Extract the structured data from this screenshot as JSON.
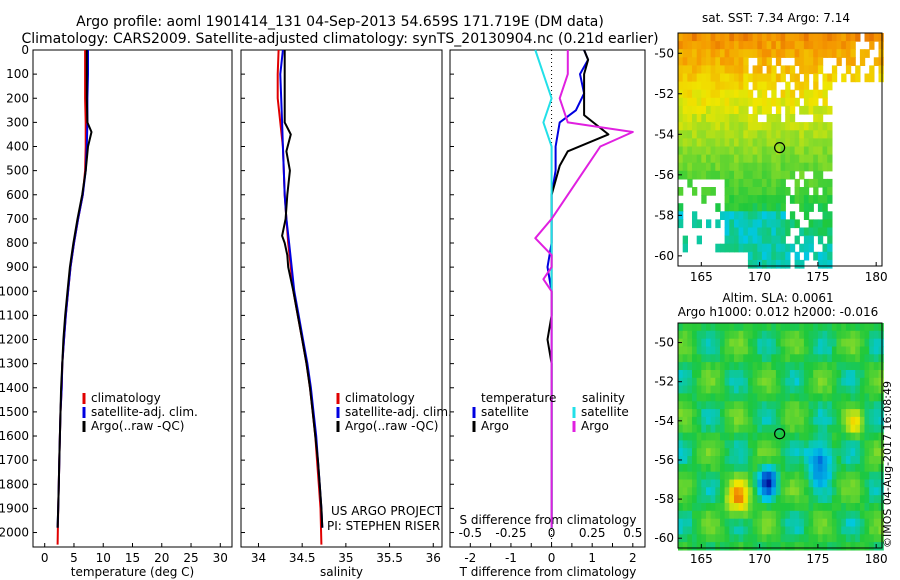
{
  "header": {
    "line1": "Argo profile: aoml 1901414_131 04-Sep-2013 54.659S 171.719E (DM data)",
    "line2": "Climatology: CARS2009. Satellite-adjusted climatology: synTS_20130904.nc (0.21d earlier)"
  },
  "colors": {
    "climatology": "#e00000",
    "satellite": "#0000e0",
    "argo": "#000000",
    "salinity_sat": "#22e0e8",
    "salinity_argo": "#e020e0"
  },
  "credit": "©IMOS 04-Aug-2017 16:08:49",
  "project_note": [
    "US ARGO PROJECT",
    "PI: STEPHEN RISER"
  ],
  "chart_data": [
    {
      "id": "temperature",
      "type": "line",
      "xlabel": "temperature (deg C)",
      "ylabel": "",
      "xlim": [
        -2,
        32
      ],
      "ylim": [
        2060,
        0
      ],
      "xticks": [
        0,
        5,
        10,
        15,
        20,
        25,
        30
      ],
      "yticks": [
        0,
        100,
        200,
        300,
        400,
        500,
        600,
        700,
        800,
        900,
        1000,
        1100,
        1200,
        1300,
        1400,
        1500,
        1600,
        1700,
        1800,
        1900,
        2000
      ],
      "legend": [
        "climatology",
        "satellite-adj. clim.",
        "Argo(..raw -QC)"
      ],
      "series": [
        {
          "name": "climatology",
          "color": "#e00000",
          "points": [
            [
              6.9,
              0
            ],
            [
              6.9,
              100
            ],
            [
              6.9,
              200
            ],
            [
              7.0,
              300
            ],
            [
              7.0,
              400
            ],
            [
              6.9,
              500
            ],
            [
              6.5,
              600
            ],
            [
              5.7,
              700
            ],
            [
              5.0,
              800
            ],
            [
              4.4,
              900
            ],
            [
              4.0,
              1000
            ],
            [
              3.6,
              1100
            ],
            [
              3.3,
              1200
            ],
            [
              3.0,
              1300
            ],
            [
              2.9,
              1400
            ],
            [
              2.7,
              1500
            ],
            [
              2.6,
              1600
            ],
            [
              2.5,
              1700
            ],
            [
              2.4,
              1800
            ],
            [
              2.3,
              1900
            ],
            [
              2.2,
              2050
            ]
          ]
        },
        {
          "name": "satellite-adj. clim.",
          "color": "#0000e0",
          "points": [
            [
              7.4,
              0
            ],
            [
              7.4,
              100
            ],
            [
              7.3,
              200
            ],
            [
              7.3,
              300
            ],
            [
              7.2,
              400
            ],
            [
              7.0,
              500
            ],
            [
              6.5,
              600
            ],
            [
              5.7,
              700
            ],
            [
              5.0,
              800
            ],
            [
              4.4,
              900
            ],
            [
              4.0,
              1000
            ],
            [
              3.6,
              1100
            ],
            [
              3.3,
              1200
            ],
            [
              3.0,
              1300
            ],
            [
              2.9,
              1400
            ],
            [
              2.7,
              1500
            ],
            [
              2.6,
              1600
            ],
            [
              2.5,
              1700
            ],
            [
              2.4,
              1800
            ],
            [
              2.3,
              1900
            ],
            [
              2.2,
              1980
            ]
          ]
        },
        {
          "name": "Argo(..raw -QC)",
          "color": "#000000",
          "points": [
            [
              7.2,
              0
            ],
            [
              7.2,
              100
            ],
            [
              7.2,
              200
            ],
            [
              7.3,
              300
            ],
            [
              8.0,
              340
            ],
            [
              7.4,
              400
            ],
            [
              7.0,
              500
            ],
            [
              6.4,
              600
            ],
            [
              5.6,
              700
            ],
            [
              4.9,
              800
            ],
            [
              4.3,
              900
            ],
            [
              3.9,
              1000
            ],
            [
              3.5,
              1100
            ],
            [
              3.2,
              1200
            ],
            [
              3.0,
              1300
            ],
            [
              2.8,
              1400
            ],
            [
              2.7,
              1500
            ],
            [
              2.6,
              1600
            ],
            [
              2.5,
              1700
            ],
            [
              2.4,
              1800
            ],
            [
              2.3,
              1900
            ],
            [
              2.2,
              1980
            ]
          ]
        }
      ]
    },
    {
      "id": "salinity",
      "type": "line",
      "xlabel": "salinity",
      "ylabel": "",
      "xlim": [
        33.8,
        36.1
      ],
      "ylim": [
        2060,
        0
      ],
      "xticks": [
        34,
        34.5,
        35,
        35.5,
        36
      ],
      "legend": [
        "climatology",
        "satellite-adj. clim.",
        "Argo(..raw -QC)"
      ],
      "series": [
        {
          "name": "climatology",
          "color": "#e00000",
          "points": [
            [
              34.23,
              0
            ],
            [
              34.22,
              100
            ],
            [
              34.22,
              200
            ],
            [
              34.25,
              300
            ],
            [
              34.28,
              400
            ],
            [
              34.29,
              500
            ],
            [
              34.3,
              600
            ],
            [
              34.32,
              700
            ],
            [
              34.34,
              800
            ],
            [
              34.37,
              900
            ],
            [
              34.4,
              1000
            ],
            [
              34.45,
              1100
            ],
            [
              34.5,
              1200
            ],
            [
              34.55,
              1300
            ],
            [
              34.59,
              1400
            ],
            [
              34.62,
              1500
            ],
            [
              34.65,
              1600
            ],
            [
              34.67,
              1700
            ],
            [
              34.69,
              1800
            ],
            [
              34.71,
              1900
            ],
            [
              34.72,
              2050
            ]
          ]
        },
        {
          "name": "satellite-adj. clim.",
          "color": "#0000e0",
          "points": [
            [
              34.28,
              0
            ],
            [
              34.25,
              100
            ],
            [
              34.26,
              200
            ],
            [
              34.27,
              300
            ],
            [
              34.28,
              400
            ],
            [
              34.29,
              500
            ],
            [
              34.3,
              600
            ],
            [
              34.32,
              700
            ],
            [
              34.35,
              800
            ],
            [
              34.38,
              900
            ],
            [
              34.41,
              1000
            ],
            [
              34.46,
              1100
            ],
            [
              34.51,
              1200
            ],
            [
              34.56,
              1300
            ],
            [
              34.6,
              1400
            ],
            [
              34.63,
              1500
            ],
            [
              34.66,
              1600
            ],
            [
              34.68,
              1700
            ],
            [
              34.7,
              1800
            ],
            [
              34.72,
              1900
            ],
            [
              34.73,
              1980
            ]
          ]
        },
        {
          "name": "Argo(..raw -QC)",
          "color": "#000000",
          "points": [
            [
              34.3,
              0
            ],
            [
              34.3,
              100
            ],
            [
              34.3,
              200
            ],
            [
              34.3,
              300
            ],
            [
              34.37,
              350
            ],
            [
              34.32,
              420
            ],
            [
              34.36,
              500
            ],
            [
              34.33,
              600
            ],
            [
              34.31,
              700
            ],
            [
              34.27,
              770
            ],
            [
              34.3,
              800
            ],
            [
              34.33,
              850
            ],
            [
              34.34,
              900
            ],
            [
              34.4,
              1000
            ],
            [
              34.45,
              1100
            ],
            [
              34.5,
              1200
            ],
            [
              34.55,
              1300
            ],
            [
              34.59,
              1400
            ],
            [
              34.62,
              1500
            ],
            [
              34.65,
              1600
            ],
            [
              34.68,
              1700
            ],
            [
              34.7,
              1800
            ],
            [
              34.72,
              1900
            ],
            [
              34.73,
              1980
            ]
          ]
        }
      ]
    },
    {
      "id": "difference",
      "type": "line",
      "xlabel": "T difference from climatology",
      "title_bottom": "S difference from climatology",
      "xlim": [
        -2.5,
        2.3
      ],
      "ylim": [
        2060,
        0
      ],
      "xticks_T": [
        -2,
        -1.5,
        -1,
        -0.5,
        0,
        0.5,
        1,
        1.5,
        2
      ],
      "xticks_T_labels": [
        "-2",
        "",
        "-1",
        "",
        "0",
        "",
        "1",
        "",
        "2"
      ],
      "xticks_S": [
        -0.5,
        -0.25,
        0,
        0.25,
        0.5
      ],
      "xticks_S_labels": [
        "-0.5",
        "-0.25",
        "0",
        "0.25",
        "0.5"
      ],
      "legend_temperature_title": "temperature",
      "legend_salinity_title": "salinity",
      "legend_temperature": [
        "satellite",
        "Argo"
      ],
      "legend_salinity": [
        "satellite",
        "Argo"
      ],
      "series": [
        {
          "name": "temperature satellite",
          "color": "#0000e0",
          "points": [
            [
              0.8,
              0
            ],
            [
              0.9,
              40
            ],
            [
              0.7,
              100
            ],
            [
              0.8,
              180
            ],
            [
              0.6,
              250
            ],
            [
              0.2,
              300
            ],
            [
              0.1,
              400
            ],
            [
              0.1,
              500
            ],
            [
              0,
              600
            ],
            [
              0,
              700
            ],
            [
              0,
              800
            ],
            [
              -0.1,
              900
            ],
            [
              0,
              1000
            ],
            [
              0,
              1100
            ],
            [
              0,
              1200
            ],
            [
              0,
              1300
            ],
            [
              0,
              1400
            ],
            [
              0,
              1500
            ],
            [
              0,
              1600
            ],
            [
              0,
              1700
            ],
            [
              0,
              1800
            ],
            [
              0,
              1900
            ],
            [
              0,
              1980
            ]
          ]
        },
        {
          "name": "temperature Argo",
          "color": "#000000",
          "points": [
            [
              0.8,
              0
            ],
            [
              0.9,
              40
            ],
            [
              0.8,
              100
            ],
            [
              0.8,
              200
            ],
            [
              0.8,
              270
            ],
            [
              1.4,
              350
            ],
            [
              0.4,
              420
            ],
            [
              0.2,
              480
            ],
            [
              0,
              600
            ],
            [
              0,
              700
            ],
            [
              0,
              800
            ],
            [
              0,
              900
            ],
            [
              0,
              1000
            ],
            [
              0,
              1100
            ],
            [
              -0.1,
              1200
            ],
            [
              0,
              1300
            ],
            [
              0,
              1400
            ],
            [
              0,
              1500
            ],
            [
              0,
              1600
            ],
            [
              0,
              1700
            ],
            [
              0,
              1800
            ],
            [
              0,
              1900
            ],
            [
              0,
              1980
            ]
          ]
        },
        {
          "name": "salinity satellite",
          "color": "#22e0e8",
          "points": [
            [
              -0.1,
              0
            ],
            [
              -0.05,
              100
            ],
            [
              0,
              200
            ],
            [
              -0.05,
              300
            ],
            [
              0,
              400
            ],
            [
              0,
              500
            ],
            [
              0,
              600
            ],
            [
              0,
              700
            ],
            [
              0,
              800
            ],
            [
              0,
              900
            ],
            [
              0,
              1000
            ],
            [
              0,
              1100
            ],
            [
              0,
              1200
            ],
            [
              0,
              1300
            ],
            [
              0,
              1400
            ],
            [
              0,
              1500
            ],
            [
              0,
              1600
            ],
            [
              0,
              1700
            ],
            [
              0,
              1800
            ],
            [
              0,
              1900
            ],
            [
              0,
              1980
            ]
          ]
        },
        {
          "name": "salinity Argo",
          "color": "#e020e0",
          "points": [
            [
              0.1,
              0
            ],
            [
              0.1,
              100
            ],
            [
              0.05,
              200
            ],
            [
              0.1,
              300
            ],
            [
              0.5,
              340
            ],
            [
              0.3,
              400
            ],
            [
              0.2,
              500
            ],
            [
              0.1,
              600
            ],
            [
              0,
              700
            ],
            [
              -0.1,
              780
            ],
            [
              0,
              850
            ],
            [
              0,
              900
            ],
            [
              -0.05,
              950
            ],
            [
              0,
              1000
            ],
            [
              0,
              1100
            ],
            [
              0,
              1200
            ],
            [
              0,
              1300
            ],
            [
              0,
              1400
            ],
            [
              0,
              1500
            ],
            [
              0,
              1600
            ],
            [
              0,
              1700
            ],
            [
              0,
              1800
            ],
            [
              0,
              1900
            ],
            [
              0,
              1980
            ]
          ]
        }
      ]
    },
    {
      "id": "sst_map",
      "type": "heatmap",
      "title": "sat. SST: 7.34 Argo: 7.14",
      "xlim": [
        163,
        180.5
      ],
      "ylim": [
        -60.5,
        -49
      ],
      "xticks": [
        165,
        170,
        175,
        180
      ],
      "yticks": [
        -50,
        -52,
        -54,
        -56,
        -58,
        -60
      ],
      "marker": [
        171.719,
        -54.659
      ]
    },
    {
      "id": "sla_map",
      "type": "heatmap",
      "title": "Altim. SLA: 0.0061",
      "subtitle": "Argo h1000: 0.012 h2000: -0.016",
      "xlim": [
        163,
        180.5
      ],
      "ylim": [
        -60.5,
        -49
      ],
      "xticks": [
        165,
        170,
        175,
        180
      ],
      "yticks": [
        -50,
        -52,
        -54,
        -56,
        -58,
        -60
      ],
      "marker": [
        171.719,
        -54.659
      ]
    }
  ]
}
